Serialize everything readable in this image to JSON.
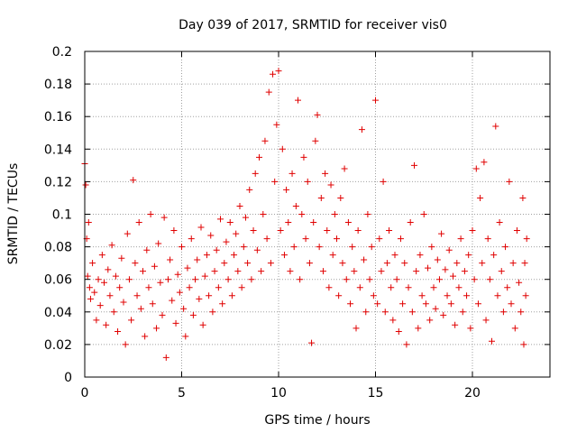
{
  "chart_data": {
    "type": "scatter",
    "title": "Day 039 of 2017, SRMTID for receiver vis0",
    "xlabel": "GPS time / hours",
    "ylabel": "SRMTID / TECUs",
    "xlim": [
      0,
      24
    ],
    "ylim": [
      0,
      0.2
    ],
    "xticks": [
      0,
      5,
      10,
      15,
      20
    ],
    "yticks": [
      0,
      0.02,
      0.04,
      0.06,
      0.08,
      0.1,
      0.12,
      0.14,
      0.16,
      0.18,
      0.2
    ],
    "xtick_labels": [
      "0",
      "5",
      "10",
      "15",
      "20"
    ],
    "ytick_labels": [
      "0",
      "0.02",
      "0.04",
      "0.06",
      "0.08",
      "0.1",
      "0.12",
      "0.14",
      "0.16",
      "0.18",
      "0.2"
    ],
    "grid": true,
    "marker": "+",
    "series": [
      {
        "name": "vis0",
        "color": "#e00000",
        "points": [
          [
            0.0,
            0.131
          ],
          [
            0.05,
            0.118
          ],
          [
            0.1,
            0.085
          ],
          [
            0.15,
            0.062
          ],
          [
            0.2,
            0.095
          ],
          [
            0.25,
            0.055
          ],
          [
            0.3,
            0.048
          ],
          [
            0.4,
            0.07
          ],
          [
            0.5,
            0.052
          ],
          [
            0.6,
            0.035
          ],
          [
            0.7,
            0.06
          ],
          [
            0.8,
            0.044
          ],
          [
            0.9,
            0.075
          ],
          [
            1.0,
            0.058
          ],
          [
            1.1,
            0.032
          ],
          [
            1.2,
            0.066
          ],
          [
            1.3,
            0.05
          ],
          [
            1.4,
            0.081
          ],
          [
            1.5,
            0.04
          ],
          [
            1.6,
            0.062
          ],
          [
            1.7,
            0.028
          ],
          [
            1.8,
            0.055
          ],
          [
            1.9,
            0.073
          ],
          [
            2.0,
            0.046
          ],
          [
            2.1,
            0.02
          ],
          [
            2.2,
            0.088
          ],
          [
            2.3,
            0.06
          ],
          [
            2.4,
            0.035
          ],
          [
            2.5,
            0.121
          ],
          [
            2.6,
            0.07
          ],
          [
            2.7,
            0.05
          ],
          [
            2.8,
            0.095
          ],
          [
            2.9,
            0.042
          ],
          [
            3.0,
            0.065
          ],
          [
            3.1,
            0.025
          ],
          [
            3.2,
            0.078
          ],
          [
            3.3,
            0.055
          ],
          [
            3.4,
            0.1
          ],
          [
            3.5,
            0.045
          ],
          [
            3.6,
            0.068
          ],
          [
            3.7,
            0.03
          ],
          [
            3.8,
            0.082
          ],
          [
            3.9,
            0.058
          ],
          [
            4.0,
            0.038
          ],
          [
            4.1,
            0.098
          ],
          [
            4.2,
            0.012
          ],
          [
            4.3,
            0.06
          ],
          [
            4.4,
            0.072
          ],
          [
            4.5,
            0.047
          ],
          [
            4.6,
            0.09
          ],
          [
            4.7,
            0.033
          ],
          [
            4.8,
            0.063
          ],
          [
            4.9,
            0.052
          ],
          [
            5.0,
            0.08
          ],
          [
            5.1,
            0.042
          ],
          [
            5.2,
            0.025
          ],
          [
            5.3,
            0.067
          ],
          [
            5.4,
            0.055
          ],
          [
            5.5,
            0.085
          ],
          [
            5.6,
            0.038
          ],
          [
            5.7,
            0.06
          ],
          [
            5.8,
            0.072
          ],
          [
            5.9,
            0.048
          ],
          [
            6.0,
            0.092
          ],
          [
            6.1,
            0.032
          ],
          [
            6.2,
            0.062
          ],
          [
            6.3,
            0.075
          ],
          [
            6.4,
            0.05
          ],
          [
            6.5,
            0.087
          ],
          [
            6.6,
            0.04
          ],
          [
            6.7,
            0.065
          ],
          [
            6.8,
            0.078
          ],
          [
            6.9,
            0.055
          ],
          [
            7.0,
            0.097
          ],
          [
            7.1,
            0.045
          ],
          [
            7.2,
            0.07
          ],
          [
            7.3,
            0.083
          ],
          [
            7.4,
            0.06
          ],
          [
            7.5,
            0.095
          ],
          [
            7.6,
            0.05
          ],
          [
            7.7,
            0.075
          ],
          [
            7.8,
            0.088
          ],
          [
            7.9,
            0.065
          ],
          [
            8.0,
            0.105
          ],
          [
            8.1,
            0.055
          ],
          [
            8.2,
            0.08
          ],
          [
            8.3,
            0.098
          ],
          [
            8.4,
            0.07
          ],
          [
            8.5,
            0.115
          ],
          [
            8.6,
            0.06
          ],
          [
            8.7,
            0.09
          ],
          [
            8.8,
            0.125
          ],
          [
            8.9,
            0.078
          ],
          [
            9.0,
            0.135
          ],
          [
            9.1,
            0.065
          ],
          [
            9.2,
            0.1
          ],
          [
            9.3,
            0.145
          ],
          [
            9.4,
            0.085
          ],
          [
            9.5,
            0.175
          ],
          [
            9.6,
            0.07
          ],
          [
            9.7,
            0.186
          ],
          [
            9.8,
            0.12
          ],
          [
            9.9,
            0.155
          ],
          [
            10.0,
            0.188
          ],
          [
            10.1,
            0.09
          ],
          [
            10.2,
            0.14
          ],
          [
            10.3,
            0.075
          ],
          [
            10.4,
            0.115
          ],
          [
            10.5,
            0.095
          ],
          [
            10.6,
            0.065
          ],
          [
            10.7,
            0.125
          ],
          [
            10.8,
            0.08
          ],
          [
            10.9,
            0.105
          ],
          [
            11.0,
            0.17
          ],
          [
            11.1,
            0.06
          ],
          [
            11.2,
            0.1
          ],
          [
            11.3,
            0.135
          ],
          [
            11.4,
            0.085
          ],
          [
            11.5,
            0.12
          ],
          [
            11.6,
            0.07
          ],
          [
            11.7,
            0.021
          ],
          [
            11.8,
            0.095
          ],
          [
            11.9,
            0.145
          ],
          [
            12.0,
            0.161
          ],
          [
            12.1,
            0.08
          ],
          [
            12.2,
            0.11
          ],
          [
            12.3,
            0.065
          ],
          [
            12.4,
            0.125
          ],
          [
            12.5,
            0.09
          ],
          [
            12.6,
            0.055
          ],
          [
            12.7,
            0.118
          ],
          [
            12.8,
            0.075
          ],
          [
            12.9,
            0.1
          ],
          [
            13.0,
            0.085
          ],
          [
            13.1,
            0.05
          ],
          [
            13.2,
            0.11
          ],
          [
            13.3,
            0.07
          ],
          [
            13.4,
            0.128
          ],
          [
            13.5,
            0.06
          ],
          [
            13.6,
            0.095
          ],
          [
            13.7,
            0.045
          ],
          [
            13.8,
            0.08
          ],
          [
            13.9,
            0.065
          ],
          [
            14.0,
            0.03
          ],
          [
            14.1,
            0.09
          ],
          [
            14.2,
            0.055
          ],
          [
            14.3,
            0.152
          ],
          [
            14.4,
            0.072
          ],
          [
            14.5,
            0.04
          ],
          [
            14.6,
            0.1
          ],
          [
            14.7,
            0.06
          ],
          [
            14.8,
            0.08
          ],
          [
            14.9,
            0.05
          ],
          [
            15.0,
            0.17
          ],
          [
            15.1,
            0.045
          ],
          [
            15.2,
            0.085
          ],
          [
            15.3,
            0.065
          ],
          [
            15.4,
            0.12
          ],
          [
            15.5,
            0.04
          ],
          [
            15.6,
            0.07
          ],
          [
            15.7,
            0.09
          ],
          [
            15.8,
            0.055
          ],
          [
            15.9,
            0.035
          ],
          [
            16.0,
            0.075
          ],
          [
            16.1,
            0.06
          ],
          [
            16.2,
            0.028
          ],
          [
            16.3,
            0.085
          ],
          [
            16.4,
            0.045
          ],
          [
            16.5,
            0.07
          ],
          [
            16.6,
            0.02
          ],
          [
            16.7,
            0.055
          ],
          [
            16.8,
            0.095
          ],
          [
            16.9,
            0.04
          ],
          [
            17.0,
            0.13
          ],
          [
            17.1,
            0.065
          ],
          [
            17.2,
            0.03
          ],
          [
            17.3,
            0.075
          ],
          [
            17.4,
            0.05
          ],
          [
            17.5,
            0.1
          ],
          [
            17.6,
            0.045
          ],
          [
            17.7,
            0.067
          ],
          [
            17.8,
            0.035
          ],
          [
            17.9,
            0.08
          ],
          [
            18.0,
            0.055
          ],
          [
            18.1,
            0.042
          ],
          [
            18.2,
            0.072
          ],
          [
            18.3,
            0.06
          ],
          [
            18.4,
            0.088
          ],
          [
            18.5,
            0.038
          ],
          [
            18.6,
            0.066
          ],
          [
            18.7,
            0.05
          ],
          [
            18.8,
            0.078
          ],
          [
            18.9,
            0.045
          ],
          [
            19.0,
            0.062
          ],
          [
            19.1,
            0.032
          ],
          [
            19.2,
            0.07
          ],
          [
            19.3,
            0.055
          ],
          [
            19.4,
            0.085
          ],
          [
            19.5,
            0.04
          ],
          [
            19.6,
            0.065
          ],
          [
            19.7,
            0.05
          ],
          [
            19.8,
            0.075
          ],
          [
            19.9,
            0.03
          ],
          [
            20.0,
            0.09
          ],
          [
            20.1,
            0.06
          ],
          [
            20.2,
            0.128
          ],
          [
            20.3,
            0.045
          ],
          [
            20.4,
            0.11
          ],
          [
            20.5,
            0.07
          ],
          [
            20.6,
            0.132
          ],
          [
            20.7,
            0.035
          ],
          [
            20.8,
            0.085
          ],
          [
            20.9,
            0.06
          ],
          [
            21.0,
            0.022
          ],
          [
            21.1,
            0.075
          ],
          [
            21.2,
            0.154
          ],
          [
            21.3,
            0.05
          ],
          [
            21.4,
            0.095
          ],
          [
            21.5,
            0.065
          ],
          [
            21.6,
            0.04
          ],
          [
            21.7,
            0.08
          ],
          [
            21.8,
            0.055
          ],
          [
            21.9,
            0.12
          ],
          [
            22.0,
            0.045
          ],
          [
            22.1,
            0.07
          ],
          [
            22.2,
            0.03
          ],
          [
            22.3,
            0.09
          ],
          [
            22.4,
            0.058
          ],
          [
            22.5,
            0.04
          ],
          [
            22.6,
            0.11
          ],
          [
            22.65,
            0.02
          ],
          [
            22.7,
            0.07
          ],
          [
            22.75,
            0.05
          ],
          [
            22.8,
            0.085
          ]
        ]
      }
    ]
  }
}
